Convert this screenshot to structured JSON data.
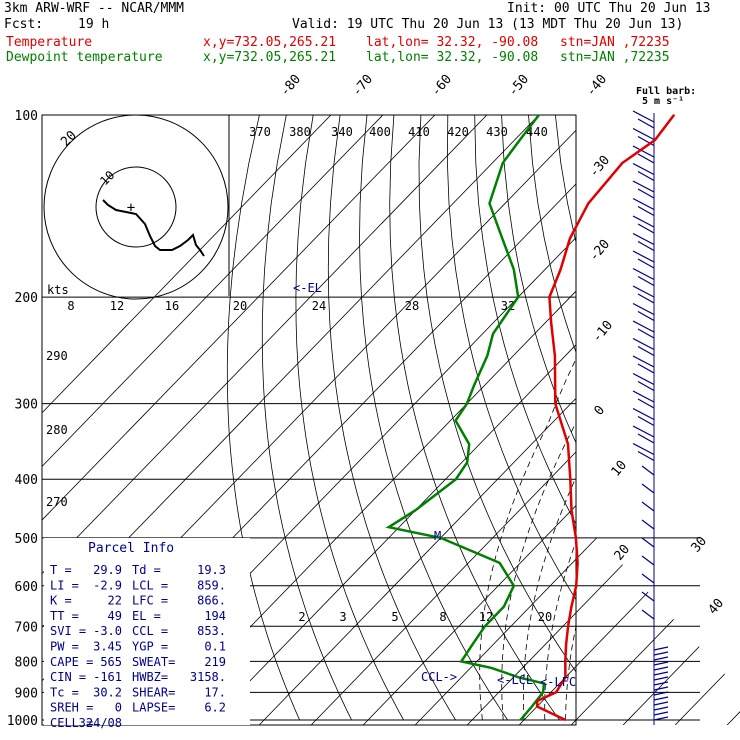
{
  "header": {
    "model": "3km ARW-WRF -- NCAR/MMM",
    "init": "Init: 00 UTC Thu 20 Jun 13",
    "fcst_label": "Fcst:",
    "fcst_value": "19 h",
    "valid": "Valid: 19 UTC Thu 20 Jun 13 (13 MDT Thu 20 Jun 13)",
    "rows": [
      {
        "name": "Temperature",
        "xy": "x,y=732.05,265.21",
        "latlon": "lat,lon= 32.32, -90.08",
        "stn": "stn=JAN ,72235",
        "color": "#e00000"
      },
      {
        "name": "Dewpoint temperature",
        "xy": "x,y=732.05,265.21",
        "latlon": "lat,lon= 32.32, -90.08",
        "stn": "stn=JAN ,72235",
        "color": "#008000"
      }
    ]
  },
  "wind_key": {
    "title": "Full barb:",
    "value": "5 m s⁻¹"
  },
  "markers": {
    "el": "<-EL",
    "lcl": "<-LCL",
    "lfc": "<-LFC",
    "ccl": "CCL->",
    "parcel_top": "M"
  },
  "hodograph": {
    "units_label": "kts",
    "ring_labels": [
      "10",
      "20"
    ],
    "speed_ticks": [
      "8",
      "12",
      "16",
      "20",
      "24",
      "28",
      "32"
    ]
  },
  "parcel_info": {
    "title": "Parcel Info",
    "rows": [
      [
        "T  =",
        "29.9",
        "Td =",
        "19.3"
      ],
      [
        "LI =",
        "-2.9",
        "LCL =",
        "859."
      ],
      [
        "K  =",
        "22",
        "LFC =",
        "866."
      ],
      [
        "TT =",
        "49",
        "EL  =",
        "194"
      ],
      [
        "SVI =",
        "-3.0",
        "CCL =",
        "853."
      ],
      [
        "PW =",
        "3.45",
        "YGP =",
        "0.1"
      ],
      [
        "CAPE =",
        "565",
        "SWEAT=",
        "219"
      ],
      [
        "CIN =",
        "-161",
        "HWBZ=",
        "3158."
      ],
      [
        "Tc =",
        "30.2",
        "SHEAR=",
        "17."
      ],
      [
        "SREH =",
        "0",
        "LAPSE=",
        "6.2"
      ],
      [
        "CELL =",
        "324/08",
        "",
        ""
      ]
    ]
  },
  "chart_data": {
    "type": "line",
    "chart_kind": "skew-T log-P sounding",
    "pressure_levels": [
      100,
      200,
      300,
      400,
      500,
      600,
      700,
      800,
      900,
      1000
    ],
    "pressure_tick_labels": [
      "100",
      "200",
      "300",
      "400",
      "500",
      "600",
      "700",
      "800",
      "900",
      "1000"
    ],
    "isotherm_labels": [
      "-80",
      "-70",
      "-60",
      "-50",
      "-40",
      "-30",
      "-20",
      "-10",
      "0",
      "10",
      "20",
      "30",
      "40"
    ],
    "theta_labels": [
      "370",
      "380",
      "340",
      "400",
      "410",
      "420",
      "430",
      "440",
      "290",
      "280",
      "270"
    ],
    "mixing_ratio_labels": [
      "2",
      "3",
      "5",
      "8",
      "12",
      "20"
    ],
    "series": [
      {
        "name": "Temperature",
        "color": "#e00000",
        "points": [
          [
            1000,
            28
          ],
          [
            975,
            24
          ],
          [
            950,
            20
          ],
          [
            930,
            19
          ],
          [
            900,
            21
          ],
          [
            850,
            20
          ],
          [
            800,
            17
          ],
          [
            750,
            14
          ],
          [
            700,
            11
          ],
          [
            650,
            8
          ],
          [
            600,
            5
          ],
          [
            550,
            1
          ],
          [
            500,
            -4
          ],
          [
            450,
            -10
          ],
          [
            400,
            -16
          ],
          [
            350,
            -23
          ],
          [
            300,
            -33
          ],
          [
            250,
            -42
          ],
          [
            220,
            -49
          ],
          [
            200,
            -54
          ],
          [
            180,
            -57
          ],
          [
            160,
            -61
          ],
          [
            140,
            -64
          ],
          [
            120,
            -65
          ],
          [
            110,
            -63
          ],
          [
            100,
            -64
          ]
        ]
      },
      {
        "name": "Dewpoint temperature",
        "color": "#008000",
        "points": [
          [
            1000,
            19.3
          ],
          [
            950,
            19
          ],
          [
            900,
            18.5
          ],
          [
            870,
            17
          ],
          [
            850,
            11
          ],
          [
            820,
            4
          ],
          [
            800,
            -3
          ],
          [
            750,
            -4
          ],
          [
            700,
            -5
          ],
          [
            650,
            -5
          ],
          [
            600,
            -7
          ],
          [
            550,
            -14
          ],
          [
            500,
            -30
          ],
          [
            480,
            -42
          ],
          [
            450,
            -40
          ],
          [
            400,
            -38
          ],
          [
            375,
            -39
          ],
          [
            350,
            -42
          ],
          [
            320,
            -49
          ],
          [
            300,
            -50
          ],
          [
            280,
            -52
          ],
          [
            250,
            -55
          ],
          [
            230,
            -58
          ],
          [
            200,
            -60
          ],
          [
            180,
            -66
          ],
          [
            160,
            -74
          ],
          [
            140,
            -83
          ],
          [
            120,
            -88
          ],
          [
            110,
            -89
          ],
          [
            100,
            -90
          ]
        ]
      }
    ]
  }
}
